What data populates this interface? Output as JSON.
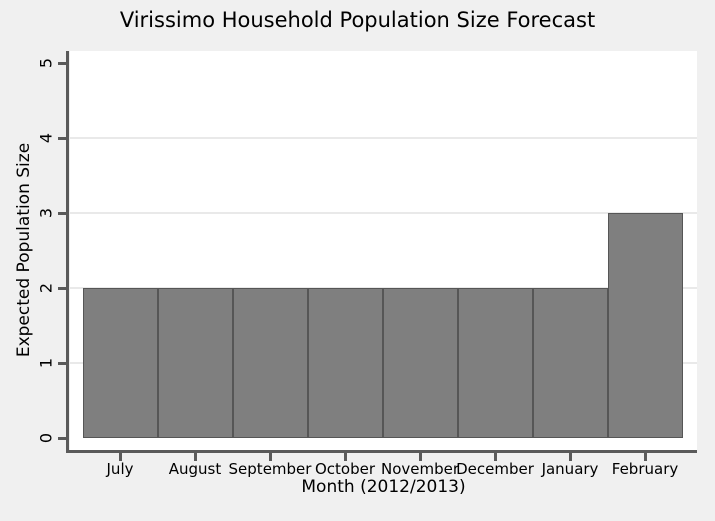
{
  "chart_data": {
    "type": "bar",
    "title": "Virissimo Household Population Size Forecast",
    "xlabel": "Month (2012/2013)",
    "ylabel": "Expected Population Size",
    "categories": [
      "July",
      "August",
      "September",
      "October",
      "November",
      "December",
      "January",
      "February"
    ],
    "values": [
      2,
      2,
      2,
      2,
      2,
      2,
      2,
      3
    ],
    "ylim": [
      0,
      5
    ],
    "yticks": [
      0,
      1,
      2,
      3,
      4,
      5
    ],
    "gridlines_y": [
      1,
      2,
      3,
      4
    ],
    "legend": "none",
    "colors": {
      "figure_background": "#f0f0f0",
      "plot_background": "#ffffff",
      "bar_fill": "#7f7f7f",
      "bar_border": "#565656",
      "axis": "#5a5a5a",
      "gridline": "#e9e9e9",
      "text": "#000000"
    }
  }
}
